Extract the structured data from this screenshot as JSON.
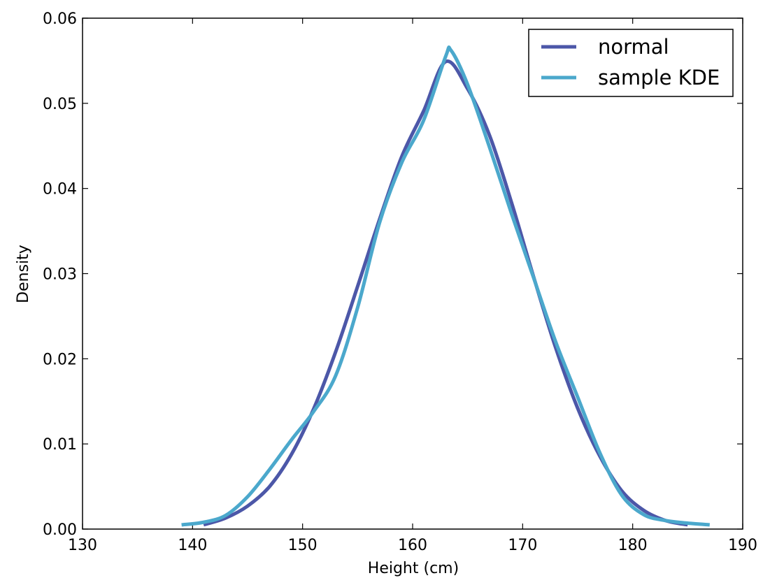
{
  "chart_data": {
    "type": "line",
    "xlabel": "Height (cm)",
    "ylabel": "Density",
    "xlim": [
      130,
      190
    ],
    "ylim": [
      0,
      0.06
    ],
    "xticks": [
      "130",
      "140",
      "150",
      "160",
      "170",
      "180",
      "190"
    ],
    "yticks": [
      "0.00",
      "0.01",
      "0.02",
      "0.03",
      "0.04",
      "0.05",
      "0.06"
    ],
    "grid": false,
    "legend_position": "top-right",
    "series": [
      {
        "name": "normal",
        "color": "#4C57A8",
        "x": [
          141,
          143,
          145,
          147,
          149,
          151,
          153,
          155,
          157,
          159,
          161,
          163,
          165,
          167,
          169,
          171,
          173,
          175,
          177,
          179,
          181,
          183,
          185
        ],
        "y": [
          0.0005,
          0.0013,
          0.0027,
          0.005,
          0.0088,
          0.0141,
          0.0208,
          0.0285,
          0.0364,
          0.0437,
          0.0491,
          0.0549,
          0.0517,
          0.0462,
          0.0383,
          0.0296,
          0.0213,
          0.0142,
          0.0086,
          0.0045,
          0.0022,
          0.001,
          0.0005
        ]
      },
      {
        "name": "sample KDE",
        "color": "#4BA8CC",
        "x": [
          139,
          141,
          143,
          145,
          147,
          149,
          151,
          153,
          155,
          157,
          159,
          161,
          163,
          163.5,
          165,
          167,
          169,
          171,
          173,
          175,
          177,
          179,
          181,
          183,
          185,
          187
        ],
        "y": [
          0.0005,
          0.0008,
          0.0016,
          0.0038,
          0.007,
          0.0105,
          0.0138,
          0.018,
          0.026,
          0.036,
          0.043,
          0.048,
          0.0555,
          0.0562,
          0.0522,
          0.0448,
          0.037,
          0.0295,
          0.022,
          0.0155,
          0.009,
          0.004,
          0.0017,
          0.001,
          0.0007,
          0.0005
        ]
      }
    ]
  }
}
